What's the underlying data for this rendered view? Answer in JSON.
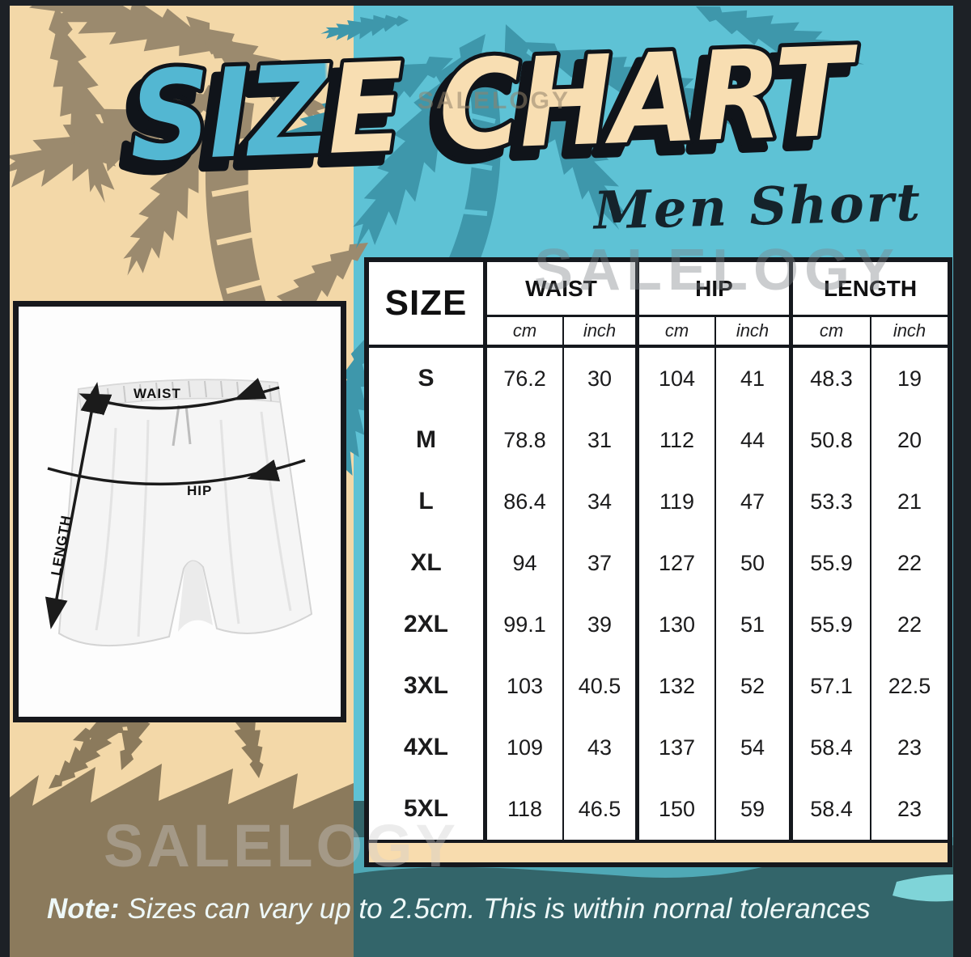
{
  "title": "SIZE CHART",
  "subtitle": "Men Short",
  "watermark": "SALELOGY",
  "note": {
    "label": "Note:",
    "text": "Sizes can vary up to 2.5cm. This is within nornal tolerances"
  },
  "diagram": {
    "waist_label": "WAIST",
    "hip_label": "HIP",
    "length_label": "LENGTH"
  },
  "table": {
    "size_header": "SIZE",
    "group_labels": [
      "WAIST",
      "HIP",
      "LENGTH"
    ],
    "units": [
      "cm",
      "inch"
    ]
  },
  "chart_data": {
    "type": "table",
    "title": "SIZE CHART",
    "subtitle": "Men Short",
    "columns": [
      "SIZE",
      "WAIST cm",
      "WAIST inch",
      "HIP cm",
      "HIP inch",
      "LENGTH cm",
      "LENGTH inch"
    ],
    "rows": [
      [
        "S",
        "76.2",
        "30",
        "104",
        "41",
        "48.3",
        "19"
      ],
      [
        "M",
        "78.8",
        "31",
        "112",
        "44",
        "50.8",
        "20"
      ],
      [
        "L",
        "86.4",
        "34",
        "119",
        "47",
        "53.3",
        "21"
      ],
      [
        "XL",
        "94",
        "37",
        "127",
        "50",
        "55.9",
        "22"
      ],
      [
        "2XL",
        "99.1",
        "39",
        "130",
        "51",
        "55.9",
        "22"
      ],
      [
        "3XL",
        "103",
        "40.5",
        "132",
        "52",
        "57.1",
        "22.5"
      ],
      [
        "4XL",
        "109",
        "43",
        "137",
        "54",
        "58.4",
        "23"
      ],
      [
        "5XL",
        "118",
        "46.5",
        "150",
        "59",
        "58.4",
        "23"
      ]
    ]
  },
  "colors": {
    "beige_bg": "#f3d8a8",
    "teal_bg": "#5ec2d5",
    "brown_palm": "#9b8a6e",
    "brown_solid": "#8b7a5c",
    "dark_teal_palm": "#3e97ab",
    "bottom_dark_teal": "#33656a",
    "mid_teal_band": "#4fa9b6",
    "lagoon_teal": "#7fd4d8",
    "title_cream": "#f8deb2",
    "title_teal": "#53b7d2",
    "table_footer_beige": "#f8dcae",
    "frame_dark": "#1d2126",
    "note_text": "#eef8f8"
  }
}
